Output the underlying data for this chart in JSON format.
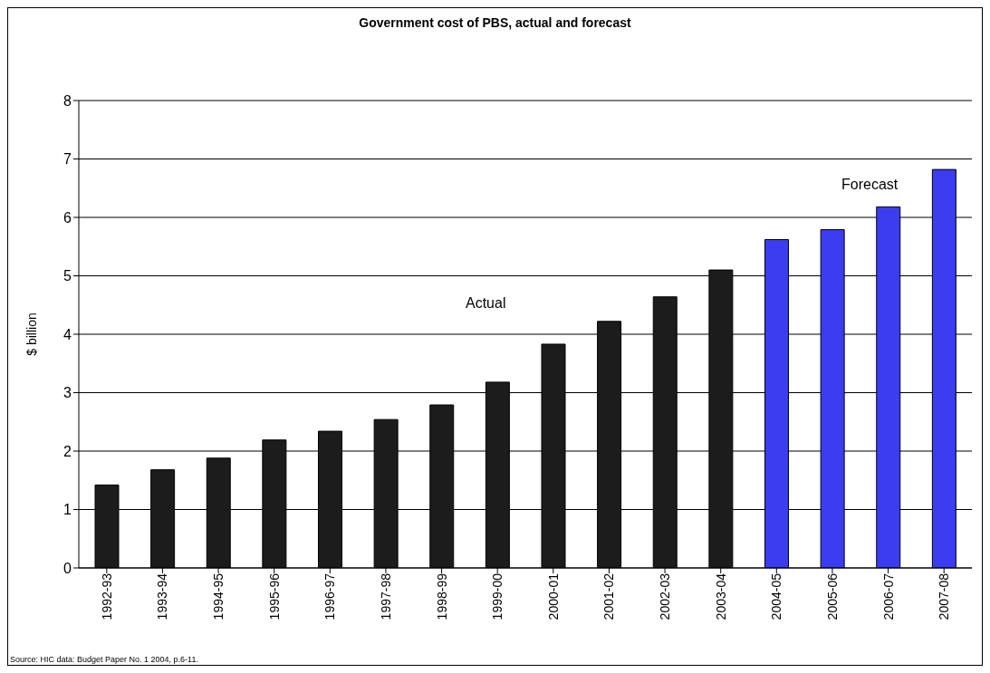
{
  "chart_data": {
    "type": "bar",
    "title": "Government cost of PBS, actual and forecast",
    "ylabel": "$ billion",
    "categories": [
      "1992-93",
      "1993-94",
      "1994-95",
      "1995-96",
      "1996-97",
      "1997-98",
      "1998-99",
      "1999-00",
      "2000-01",
      "2001-02",
      "2002-03",
      "2003-04",
      "2004-05",
      "2005-06",
      "2006-07",
      "2007-08"
    ],
    "values": [
      1.42,
      1.68,
      1.88,
      2.19,
      2.34,
      2.54,
      2.79,
      3.18,
      3.83,
      4.22,
      4.64,
      5.1,
      5.62,
      5.79,
      6.18,
      6.82
    ],
    "colors": [
      "#1c1c1c",
      "#1c1c1c",
      "#1c1c1c",
      "#1c1c1c",
      "#1c1c1c",
      "#1c1c1c",
      "#1c1c1c",
      "#1c1c1c",
      "#1c1c1c",
      "#1c1c1c",
      "#1c1c1c",
      "#1c1c1c",
      "#3c3cf0",
      "#3c3cf0",
      "#3c3cf0",
      "#3c3cf0"
    ],
    "ylim": [
      0,
      8
    ],
    "yticks": [
      0,
      1,
      2,
      3,
      4,
      5,
      6,
      7,
      8
    ],
    "grid": "y",
    "legend": false,
    "annotations": [
      "Actual",
      "Forecast",
      "Source: HIC data: Budget Paper No. 1 2004, p.6-11."
    ]
  }
}
